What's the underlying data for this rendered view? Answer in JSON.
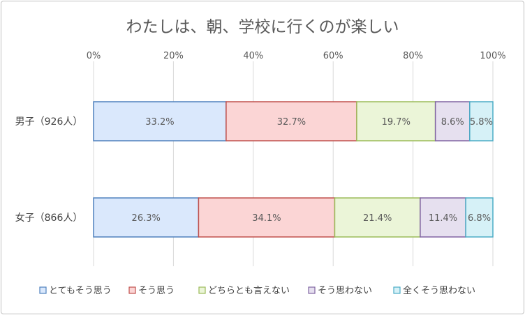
{
  "chart_data": {
    "type": "bar",
    "orientation": "horizontal",
    "stacked": "percent",
    "title": "わたしは、朝、学校に行くのが楽しい",
    "categories": [
      "男子（926人）",
      "女子（866人）"
    ],
    "x_ticks": [
      "0%",
      "20%",
      "40%",
      "60%",
      "80%",
      "100%"
    ],
    "xlim": [
      0,
      100
    ],
    "grid": true,
    "legend_position": "bottom",
    "series": [
      {
        "name": "とてもそう思う",
        "values": [
          33.2,
          26.3
        ],
        "labels": [
          "33.2%",
          "26.3%"
        ],
        "color": "#dae8fc",
        "stroke": "#4f81bd"
      },
      {
        "name": "そう思う",
        "values": [
          32.7,
          34.1
        ],
        "labels": [
          "32.7%",
          "34.1%"
        ],
        "color": "#fbd5d5",
        "stroke": "#c0504d"
      },
      {
        "name": "どちらとも言えない",
        "values": [
          19.7,
          21.4
        ],
        "labels": [
          "19.7%",
          "21.4%"
        ],
        "color": "#ebf5d8",
        "stroke": "#9bbb59"
      },
      {
        "name": "そう思わない",
        "values": [
          8.6,
          11.4
        ],
        "labels": [
          "8.6%",
          "11.4%"
        ],
        "color": "#e6e0ef",
        "stroke": "#8064a2"
      },
      {
        "name": "全くそう思わない",
        "values": [
          5.8,
          6.8
        ],
        "labels": [
          "5.8%",
          "6.8%"
        ],
        "color": "#d6f1f7",
        "stroke": "#4bacc6"
      }
    ]
  }
}
